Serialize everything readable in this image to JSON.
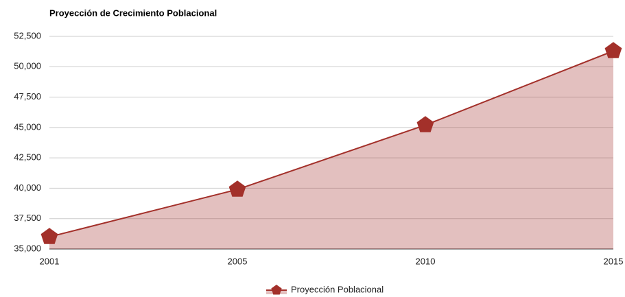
{
  "chart_data": {
    "type": "area",
    "title": "Proyección de Crecimiento Poblacional",
    "categories": [
      "2001",
      "2005",
      "2010",
      "2015"
    ],
    "series": [
      {
        "name": "Proyección Poblacional",
        "color": "#a3302a",
        "values": [
          36000,
          39900,
          45200,
          51300
        ]
      }
    ],
    "ylim": [
      35000,
      52500
    ],
    "yticks": [
      {
        "value": 35000,
        "label": "35,000"
      },
      {
        "value": 37500,
        "label": "37,500"
      },
      {
        "value": 40000,
        "label": "40,000"
      },
      {
        "value": 42500,
        "label": "42,500"
      },
      {
        "value": 45000,
        "label": "45,000"
      },
      {
        "value": 47500,
        "label": "47,500"
      },
      {
        "value": 50000,
        "label": "50,000"
      },
      {
        "value": 52500,
        "label": "52,500"
      }
    ],
    "grid": true,
    "legend": "bottom"
  }
}
